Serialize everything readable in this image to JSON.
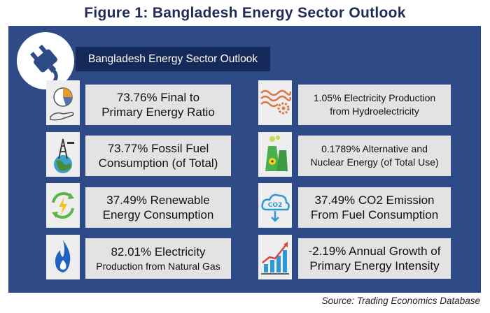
{
  "title": "Figure 1: Bangladesh Energy Sector Outlook",
  "header": {
    "label": "Bangladesh Energy Sector Outlook",
    "icon": "plug-icon"
  },
  "left_items": [
    {
      "line1": "73.76% Final to",
      "line2": "Primary Energy Ratio",
      "icon": "pie-chart-hand-icon"
    },
    {
      "line1": "73.77% Fossil Fuel",
      "line2": "Consumption (of Total)",
      "icon": "oil-derrick-globe-icon"
    },
    {
      "line1": "37.49% Renewable",
      "line2": "Energy Consumption",
      "icon": "renewable-energy-icon"
    },
    {
      "line1": "82.01% Electricity",
      "line2": "Production from Natural Gas",
      "icon": "gas-flame-icon"
    }
  ],
  "right_items": [
    {
      "line1": "1.05% Electricity Production",
      "line2": "from Hydroelectricity",
      "icon": "hydro-wave-icon"
    },
    {
      "line1": "0.1789% Alternative and",
      "line2": "Nuclear Energy (of Total Use)",
      "icon": "nuclear-plant-icon"
    },
    {
      "line1": "37.49% CO2 Emission",
      "line2": "From Fuel Consumption",
      "icon": "co2-cloud-icon"
    },
    {
      "line1": "-2.19% Annual Growth of",
      "line2": "Primary Energy Intensity",
      "icon": "growth-chart-icon"
    }
  ],
  "source": "Source: Trading Economics Database",
  "colors": {
    "panel": "#2f4b87",
    "header_box": "#15295a",
    "text_box": "#e3e3e3",
    "title": "#1f2b56"
  }
}
